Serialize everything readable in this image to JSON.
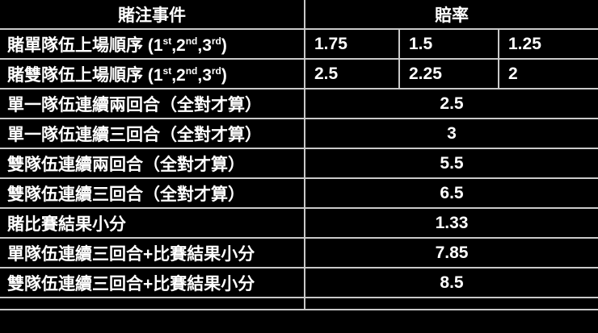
{
  "colors": {
    "background": "#000000",
    "grid_line": "#c9c9c9",
    "text": "#ffffff"
  },
  "header": {
    "event_label": "賭注事件",
    "odds_label": "賠率"
  },
  "rows": [
    {
      "label_parts": [
        {
          "text": "賭單隊伍上場順序 (1"
        },
        {
          "sup": "st"
        },
        {
          "text": ",2"
        },
        {
          "sup": "nd"
        },
        {
          "text": ",3"
        },
        {
          "sup": "rd"
        },
        {
          "text": ")"
        }
      ],
      "odds": [
        "1.75",
        "1.5",
        "1.25"
      ]
    },
    {
      "label_parts": [
        {
          "text": "賭雙隊伍上場順序 (1"
        },
        {
          "sup": "st"
        },
        {
          "text": ",2"
        },
        {
          "sup": "nd"
        },
        {
          "text": ",3"
        },
        {
          "sup": "rd"
        },
        {
          "text": ")"
        }
      ],
      "odds": [
        "2.5",
        "2.25",
        "2"
      ]
    },
    {
      "label_parts": [
        {
          "text": "單一隊伍連續兩回合（全對才算）"
        }
      ],
      "odds": [
        "2.5"
      ]
    },
    {
      "label_parts": [
        {
          "text": "單一隊伍連續三回合（全對才算）"
        }
      ],
      "odds": [
        "3"
      ]
    },
    {
      "label_parts": [
        {
          "text": "雙隊伍連續兩回合（全對才算）"
        }
      ],
      "odds": [
        "5.5"
      ]
    },
    {
      "label_parts": [
        {
          "text": "雙隊伍連續三回合（全對才算）"
        }
      ],
      "odds": [
        "6.5"
      ]
    },
    {
      "label_parts": [
        {
          "text": "賭比賽結果小分"
        }
      ],
      "odds": [
        "1.33"
      ]
    },
    {
      "label_parts": [
        {
          "text": "單隊伍連續三回合+比賽結果小分"
        }
      ],
      "odds": [
        "7.85"
      ]
    },
    {
      "label_parts": [
        {
          "text": "雙隊伍連續三回合+比賽結果小分"
        }
      ],
      "odds": [
        "8.5"
      ]
    }
  ],
  "chart_data": {
    "type": "table",
    "title": "",
    "columns": [
      "賭注事件",
      "賠率"
    ],
    "rows": [
      {
        "event": "賭單隊伍上場順序 (1st,2nd,3rd)",
        "odds": [
          1.75,
          1.5,
          1.25
        ]
      },
      {
        "event": "賭雙隊伍上場順序 (1st,2nd,3rd)",
        "odds": [
          2.5,
          2.25,
          2
        ]
      },
      {
        "event": "單一隊伍連續兩回合（全對才算）",
        "odds": [
          2.5
        ]
      },
      {
        "event": "單一隊伍連續三回合（全對才算）",
        "odds": [
          3
        ]
      },
      {
        "event": "雙隊伍連續兩回合（全對才算）",
        "odds": [
          5.5
        ]
      },
      {
        "event": "雙隊伍連續三回合（全對才算）",
        "odds": [
          6.5
        ]
      },
      {
        "event": "賭比賽結果小分",
        "odds": [
          1.33
        ]
      },
      {
        "event": "單隊伍連續三回合+比賽結果小分",
        "odds": [
          7.85
        ]
      },
      {
        "event": "雙隊伍連續三回合+比賽結果小分",
        "odds": [
          8.5
        ]
      }
    ],
    "layout": {
      "background": "black",
      "grid": "light-gray-lines",
      "odds_subcolumns": 3
    }
  }
}
